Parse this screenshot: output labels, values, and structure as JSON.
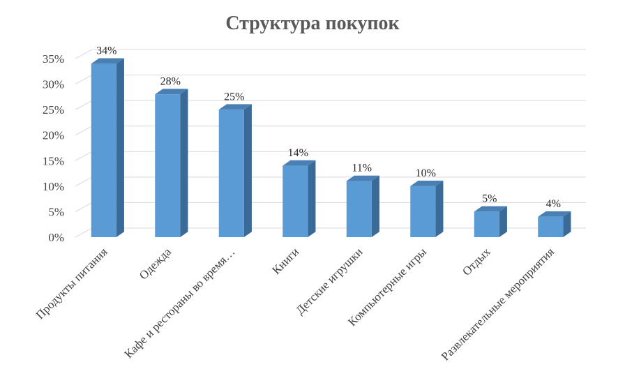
{
  "chart_data": {
    "type": "bar",
    "title": "Структура покупок",
    "xlabel": "",
    "ylabel": "",
    "ylim": [
      0,
      35
    ],
    "yticks": [
      "0%",
      "5%",
      "10%",
      "15%",
      "20%",
      "25%",
      "30%",
      "35%"
    ],
    "categories": [
      "Продукты питания",
      "Одежда",
      "Кафе и рестораны во время…",
      "Книги",
      "Детские игрушки",
      "Компьютерные игры",
      "Отдых",
      "Развлекательные мероприятия"
    ],
    "values": [
      34,
      28,
      25,
      14,
      11,
      10,
      5,
      4
    ],
    "data_labels": [
      "34%",
      "28%",
      "25%",
      "14%",
      "11%",
      "10%",
      "5%",
      "4%"
    ],
    "grid": true,
    "legend": "none",
    "colors": {
      "bar_front": "#5b9bd5",
      "bar_side": "#3a6a97",
      "bar_top": "#4a7fb3"
    }
  }
}
